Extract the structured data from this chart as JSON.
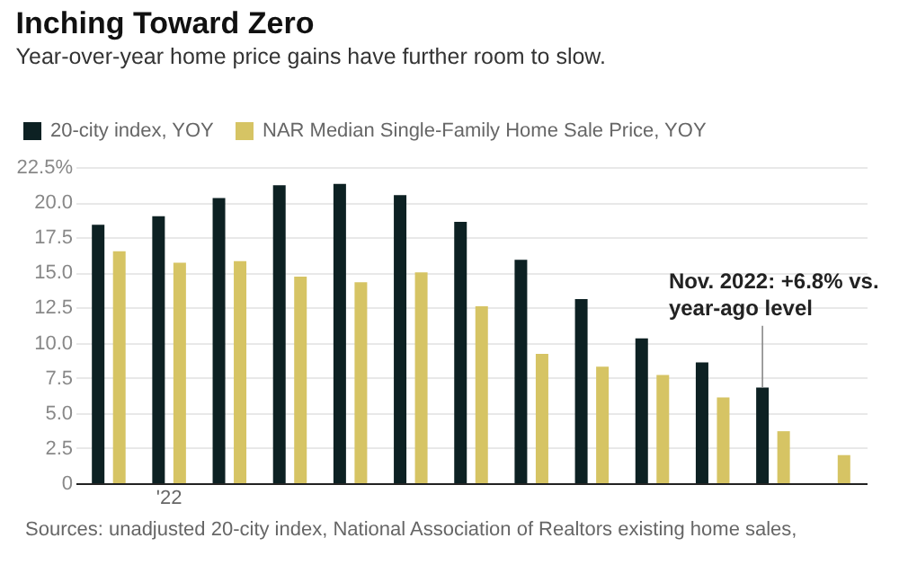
{
  "chart_data": {
    "type": "bar",
    "title": "Inching Toward Zero",
    "subtitle": "Year-over-year home price gains have further room to slow.",
    "categories": [
      null,
      "'22",
      null,
      null,
      null,
      null,
      null,
      null,
      null,
      null,
      null,
      null,
      null
    ],
    "series": [
      {
        "name": "20-city index, YOY",
        "color": "#0d2123",
        "values": [
          18.4,
          19.0,
          20.3,
          21.2,
          21.3,
          20.5,
          18.6,
          15.9,
          13.1,
          10.3,
          8.6,
          6.8,
          null
        ]
      },
      {
        "name": "NAR Median Single-Family Home Sale Price, YOY",
        "color": "#d6c464",
        "values": [
          16.5,
          15.7,
          15.8,
          14.7,
          14.3,
          15.0,
          12.6,
          9.2,
          8.3,
          7.7,
          6.1,
          3.7,
          2.0
        ]
      }
    ],
    "ylim": [
      0,
      22.5
    ],
    "yticks": [
      0,
      2.5,
      {
        "value": 5,
        "label": "5.0"
      },
      7.5,
      {
        "value": 10,
        "label": "10.0"
      },
      12.5,
      {
        "value": 15,
        "label": "15.0"
      },
      17.5,
      {
        "value": 20,
        "label": "20.0"
      },
      {
        "value": 22.5,
        "label": "22.5%"
      }
    ],
    "grid": "y",
    "legend": "top left",
    "annotations": [
      "Nov. 2022: +6.8% vs.\nyear-ago level",
      "Sources: unadjusted 20-city index, National Association of Realtors existing home sales,"
    ]
  }
}
